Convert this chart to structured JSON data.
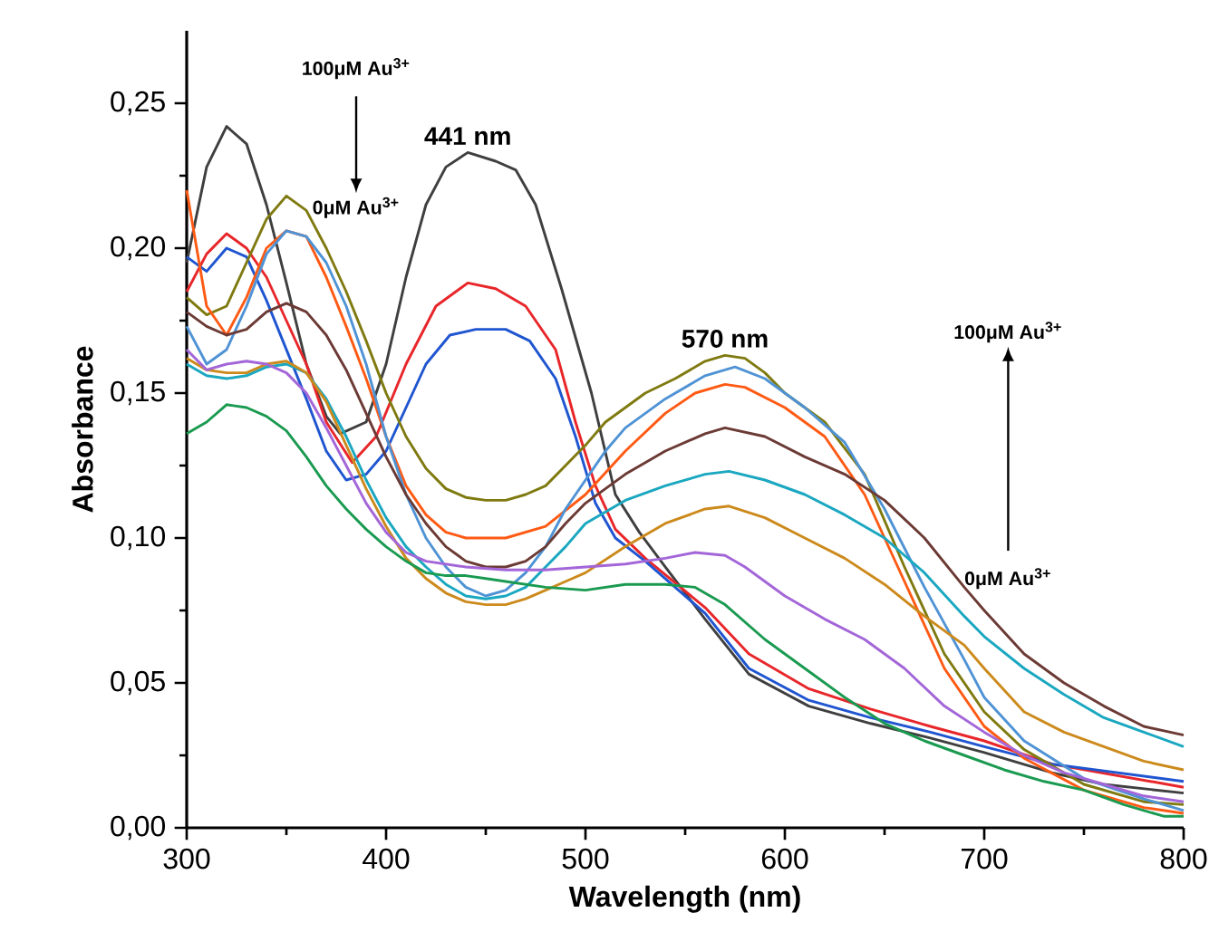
{
  "chart_data": {
    "type": "line",
    "xlabel": "Wavelength (nm)",
    "ylabel": "Absorbance",
    "xlim": [
      300,
      800
    ],
    "xticks": [
      300,
      400,
      500,
      600,
      700,
      800
    ],
    "ylim": [
      0,
      0.275
    ],
    "yticks": [
      {
        "value": 0,
        "label": "0,00"
      },
      {
        "value": 0.05,
        "label": "0,05"
      },
      {
        "value": 0.1,
        "label": "0,10"
      },
      {
        "value": 0.15,
        "label": "0,15"
      },
      {
        "value": 0.2,
        "label": "0,20"
      },
      {
        "value": 0.25,
        "label": "0,25"
      }
    ],
    "grid": false,
    "marker": "none",
    "line_style": "solid",
    "annotations": [
      {
        "text": "441 nm",
        "x": 441,
        "y": 0.233
      },
      {
        "text": "570 nm",
        "x": 570,
        "y": 0.163
      },
      "100μM Au$^{3+}$",
      "0μM Au$^{3+}$",
      "0μM Au$^{3+}$",
      "100μM Au$^{3+}$"
    ],
    "series": [
      {
        "color": "#3f3f3f",
        "x": [
          300,
          310,
          320,
          330,
          340,
          350,
          360,
          370,
          377,
          390,
          400,
          410,
          420,
          430,
          441,
          455,
          465,
          475,
          488,
          503,
          515,
          527,
          540,
          560,
          582,
          612,
          643,
          673,
          700,
          734,
          760,
          800
        ],
        "values": [
          0.195,
          0.228,
          0.242,
          0.236,
          0.215,
          0.188,
          0.16,
          0.142,
          0.136,
          0.14,
          0.16,
          0.19,
          0.215,
          0.228,
          0.233,
          0.23,
          0.227,
          0.215,
          0.186,
          0.15,
          0.115,
          0.102,
          0.09,
          0.072,
          0.053,
          0.042,
          0.036,
          0.031,
          0.026,
          0.019,
          0.015,
          0.012
        ]
      },
      {
        "color": "#e8262a",
        "x": [
          300,
          310,
          320,
          330,
          340,
          350,
          360,
          370,
          383,
          395,
          410,
          425,
          441,
          455,
          470,
          485,
          495,
          505,
          515,
          530,
          560,
          582,
          612,
          643,
          673,
          700,
          734,
          800
        ],
        "values": [
          0.185,
          0.198,
          0.205,
          0.2,
          0.19,
          0.175,
          0.16,
          0.14,
          0.126,
          0.135,
          0.16,
          0.18,
          0.188,
          0.186,
          0.18,
          0.165,
          0.14,
          0.118,
          0.103,
          0.093,
          0.076,
          0.06,
          0.048,
          0.041,
          0.035,
          0.03,
          0.022,
          0.014
        ]
      },
      {
        "color": "#1f55d0",
        "x": [
          300,
          310,
          320,
          330,
          340,
          350,
          360,
          370,
          380,
          390,
          400,
          410,
          420,
          432,
          445,
          460,
          472,
          485,
          495,
          505,
          515,
          530,
          560,
          582,
          612,
          643,
          673,
          700,
          734,
          800
        ],
        "values": [
          0.197,
          0.192,
          0.2,
          0.197,
          0.182,
          0.165,
          0.148,
          0.13,
          0.12,
          0.122,
          0.13,
          0.145,
          0.16,
          0.17,
          0.172,
          0.172,
          0.168,
          0.155,
          0.135,
          0.112,
          0.1,
          0.092,
          0.074,
          0.055,
          0.044,
          0.038,
          0.033,
          0.028,
          0.022,
          0.016
        ]
      },
      {
        "color": "#7f7a10",
        "x": [
          300,
          310,
          320,
          330,
          340,
          350,
          360,
          370,
          380,
          390,
          400,
          410,
          420,
          430,
          440,
          450,
          460,
          470,
          480,
          490,
          500,
          510,
          520,
          530,
          545,
          560,
          570,
          580,
          590,
          600,
          620,
          640,
          660,
          680,
          700,
          720,
          750,
          780,
          800
        ],
        "values": [
          0.183,
          0.177,
          0.18,
          0.195,
          0.21,
          0.218,
          0.213,
          0.2,
          0.185,
          0.168,
          0.15,
          0.135,
          0.124,
          0.117,
          0.114,
          0.113,
          0.113,
          0.115,
          0.118,
          0.125,
          0.132,
          0.14,
          0.145,
          0.15,
          0.155,
          0.161,
          0.163,
          0.162,
          0.157,
          0.15,
          0.14,
          0.122,
          0.09,
          0.06,
          0.04,
          0.027,
          0.015,
          0.009,
          0.008
        ]
      },
      {
        "color": "#ff5a14",
        "x": [
          300,
          310,
          320,
          330,
          340,
          350,
          360,
          370,
          380,
          390,
          400,
          410,
          420,
          430,
          440,
          460,
          480,
          500,
          520,
          540,
          555,
          570,
          580,
          600,
          620,
          640,
          660,
          680,
          700,
          720,
          750,
          780,
          800
        ],
        "values": [
          0.22,
          0.18,
          0.17,
          0.183,
          0.2,
          0.206,
          0.204,
          0.19,
          0.173,
          0.155,
          0.135,
          0.118,
          0.108,
          0.102,
          0.1,
          0.1,
          0.104,
          0.115,
          0.13,
          0.143,
          0.15,
          0.153,
          0.152,
          0.145,
          0.135,
          0.115,
          0.085,
          0.055,
          0.035,
          0.024,
          0.013,
          0.007,
          0.005
        ]
      },
      {
        "color": "#4f93d5",
        "x": [
          300,
          310,
          320,
          330,
          340,
          350,
          360,
          370,
          380,
          390,
          400,
          410,
          420,
          430,
          440,
          450,
          460,
          470,
          480,
          490,
          500,
          510,
          520,
          540,
          560,
          575,
          590,
          610,
          630,
          650,
          670,
          690,
          700,
          720,
          750,
          780,
          800
        ],
        "values": [
          0.173,
          0.16,
          0.165,
          0.18,
          0.198,
          0.206,
          0.204,
          0.195,
          0.18,
          0.16,
          0.135,
          0.115,
          0.1,
          0.09,
          0.083,
          0.08,
          0.082,
          0.088,
          0.097,
          0.11,
          0.12,
          0.13,
          0.138,
          0.148,
          0.156,
          0.159,
          0.155,
          0.145,
          0.133,
          0.11,
          0.083,
          0.058,
          0.045,
          0.03,
          0.017,
          0.01,
          0.006
        ]
      },
      {
        "color": "#6b3a35",
        "x": [
          300,
          310,
          320,
          330,
          340,
          350,
          360,
          370,
          380,
          390,
          400,
          410,
          420,
          430,
          440,
          450,
          460,
          470,
          480,
          490,
          500,
          520,
          540,
          560,
          570,
          590,
          610,
          630,
          650,
          670,
          690,
          700,
          720,
          740,
          760,
          780,
          800
        ],
        "values": [
          0.178,
          0.173,
          0.17,
          0.172,
          0.178,
          0.181,
          0.178,
          0.17,
          0.158,
          0.143,
          0.128,
          0.115,
          0.105,
          0.097,
          0.092,
          0.09,
          0.09,
          0.092,
          0.097,
          0.105,
          0.112,
          0.122,
          0.13,
          0.136,
          0.138,
          0.135,
          0.128,
          0.122,
          0.113,
          0.1,
          0.083,
          0.075,
          0.06,
          0.05,
          0.042,
          0.035,
          0.032
        ]
      },
      {
        "color": "#1aa7c0",
        "x": [
          300,
          310,
          320,
          330,
          340,
          350,
          360,
          370,
          380,
          390,
          400,
          410,
          420,
          430,
          440,
          450,
          460,
          470,
          480,
          490,
          500,
          520,
          540,
          560,
          572,
          590,
          610,
          630,
          650,
          670,
          690,
          700,
          720,
          740,
          760,
          780,
          800
        ],
        "values": [
          0.16,
          0.156,
          0.155,
          0.156,
          0.159,
          0.16,
          0.157,
          0.148,
          0.135,
          0.12,
          0.107,
          0.097,
          0.09,
          0.084,
          0.08,
          0.079,
          0.08,
          0.083,
          0.09,
          0.097,
          0.105,
          0.113,
          0.118,
          0.122,
          0.123,
          0.12,
          0.115,
          0.108,
          0.1,
          0.088,
          0.073,
          0.066,
          0.055,
          0.046,
          0.038,
          0.033,
          0.028
        ]
      },
      {
        "color": "#cc8a1c",
        "x": [
          300,
          310,
          320,
          330,
          340,
          350,
          360,
          370,
          380,
          390,
          400,
          410,
          420,
          430,
          440,
          450,
          460,
          470,
          480,
          490,
          500,
          520,
          540,
          560,
          572,
          590,
          610,
          630,
          650,
          670,
          690,
          700,
          720,
          740,
          760,
          780,
          800
        ],
        "values": [
          0.162,
          0.158,
          0.157,
          0.157,
          0.16,
          0.161,
          0.157,
          0.147,
          0.132,
          0.117,
          0.104,
          0.093,
          0.086,
          0.081,
          0.078,
          0.077,
          0.077,
          0.079,
          0.082,
          0.085,
          0.088,
          0.097,
          0.105,
          0.11,
          0.111,
          0.107,
          0.1,
          0.093,
          0.084,
          0.073,
          0.063,
          0.055,
          0.04,
          0.033,
          0.028,
          0.023,
          0.02
        ]
      },
      {
        "color": "#a366d8",
        "x": [
          300,
          310,
          320,
          330,
          340,
          350,
          360,
          370,
          380,
          390,
          400,
          410,
          420,
          440,
          460,
          480,
          500,
          520,
          540,
          555,
          570,
          580,
          600,
          620,
          640,
          660,
          680,
          700,
          720,
          740,
          760,
          780,
          800
        ],
        "values": [
          0.165,
          0.158,
          0.16,
          0.161,
          0.16,
          0.157,
          0.15,
          0.138,
          0.125,
          0.112,
          0.102,
          0.095,
          0.092,
          0.09,
          0.089,
          0.089,
          0.09,
          0.091,
          0.093,
          0.095,
          0.094,
          0.09,
          0.08,
          0.072,
          0.065,
          0.055,
          0.042,
          0.033,
          0.025,
          0.019,
          0.015,
          0.011,
          0.009
        ]
      },
      {
        "color": "#1a9a50",
        "x": [
          300,
          310,
          320,
          330,
          340,
          350,
          360,
          370,
          380,
          390,
          400,
          410,
          420,
          430,
          440,
          450,
          460,
          480,
          500,
          520,
          540,
          555,
          570,
          590,
          610,
          630,
          650,
          670,
          690,
          710,
          730,
          750,
          770,
          790,
          800
        ],
        "values": [
          0.136,
          0.14,
          0.146,
          0.145,
          0.142,
          0.137,
          0.128,
          0.118,
          0.11,
          0.103,
          0.097,
          0.092,
          0.088,
          0.087,
          0.087,
          0.086,
          0.085,
          0.083,
          0.082,
          0.084,
          0.084,
          0.083,
          0.077,
          0.065,
          0.055,
          0.045,
          0.036,
          0.03,
          0.025,
          0.02,
          0.016,
          0.013,
          0.008,
          0.004,
          0.004
        ]
      }
    ]
  }
}
